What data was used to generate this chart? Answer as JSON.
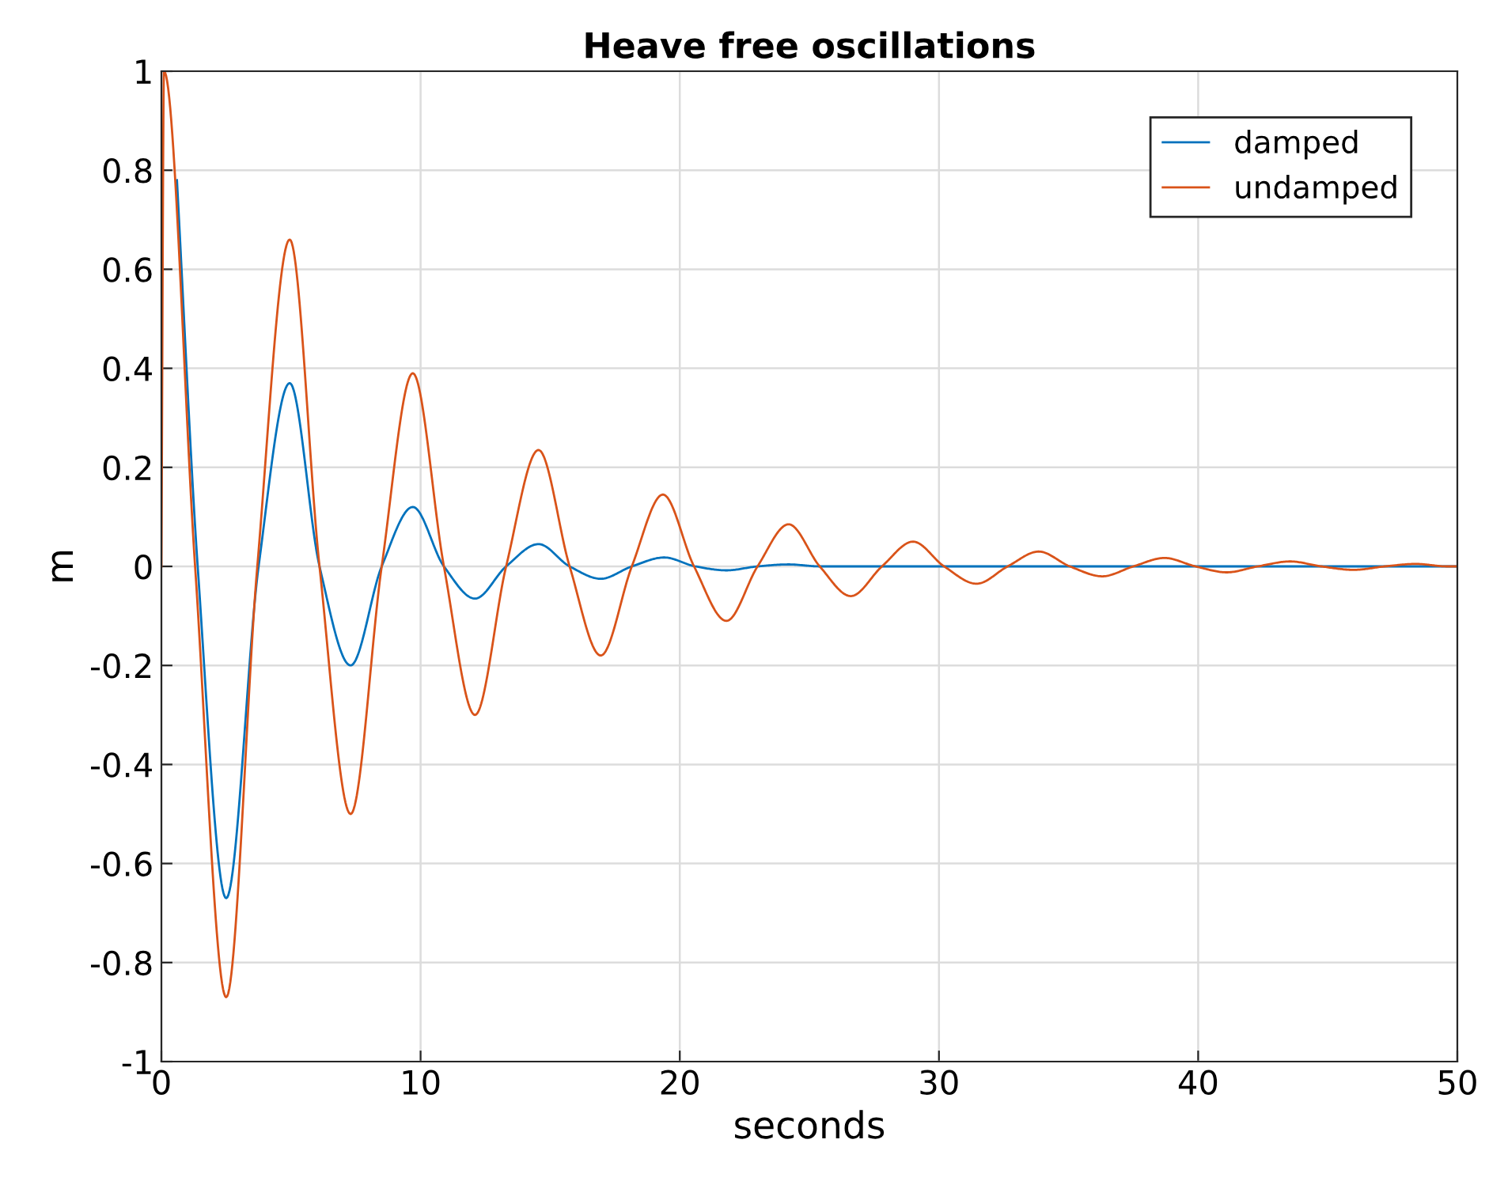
{
  "chart_data": {
    "type": "line",
    "title": "Heave free oscillations",
    "xlabel": "seconds",
    "ylabel": "m",
    "xlim": [
      0,
      50
    ],
    "ylim": [
      -1,
      1
    ],
    "xticks": [
      0,
      10,
      20,
      30,
      40,
      50
    ],
    "yticks": [
      -1,
      -0.8,
      -0.6,
      -0.4,
      -0.2,
      0,
      0.2,
      0.4,
      0.6,
      0.8,
      1
    ],
    "grid": true,
    "legend": "top right",
    "line_style": "solid",
    "marker": "none",
    "series": [
      {
        "name": "damped",
        "color": "#0072bd",
        "x": [
          0.6,
          1.4,
          2.5,
          3.75,
          4.95,
          6.1,
          7.3,
          8.5,
          9.7,
          10.9,
          12.1,
          13.3,
          14.55,
          15.75,
          16.95,
          18.15,
          19.4,
          20.6,
          21.8,
          23.0,
          24.2,
          25.4,
          26.6,
          50
        ],
        "values": [
          0.78,
          0,
          -0.67,
          0,
          0.37,
          0,
          -0.2,
          0,
          0.12,
          0,
          -0.065,
          0,
          0.045,
          0,
          -0.025,
          0,
          0.018,
          0,
          -0.008,
          0,
          0.004,
          0,
          0,
          0
        ]
      },
      {
        "name": "undamped",
        "color": "#d95319",
        "x": [
          0,
          0.1,
          1.3,
          2.5,
          3.7,
          4.95,
          6.1,
          7.3,
          8.5,
          9.7,
          10.9,
          12.1,
          13.3,
          14.55,
          15.75,
          16.95,
          18.15,
          19.35,
          20.55,
          21.8,
          23.0,
          24.2,
          25.4,
          26.6,
          27.8,
          29.0,
          30.2,
          31.45,
          32.65,
          33.85,
          35.05,
          36.3,
          37.5,
          38.7,
          39.9,
          41.1,
          42.3,
          43.55,
          44.75,
          46.0,
          47.2,
          48.4,
          49.6,
          50
        ],
        "values": [
          0,
          1,
          0,
          -0.87,
          0,
          0.66,
          0,
          -0.5,
          0,
          0.39,
          0,
          -0.3,
          0,
          0.235,
          0,
          -0.18,
          0,
          0.145,
          0,
          -0.11,
          0,
          0.085,
          0,
          -0.06,
          0,
          0.05,
          0,
          -0.035,
          0,
          0.03,
          0,
          -0.02,
          0,
          0.017,
          0,
          -0.012,
          0,
          0.01,
          0,
          -0.007,
          0,
          0.005,
          0,
          0
        ]
      }
    ]
  }
}
